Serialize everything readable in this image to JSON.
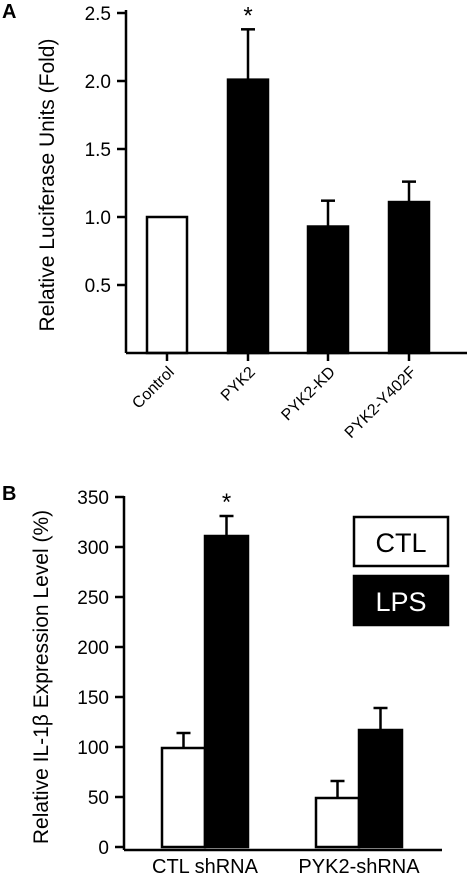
{
  "chart_data": [
    {
      "panel_label": "A",
      "type": "bar",
      "categories": [
        "Control",
        "PYK2",
        "PYK2-KD",
        "PYK2-Y402F"
      ],
      "values": [
        1.0,
        2.01,
        0.93,
        1.11
      ],
      "errors": [
        0,
        0.37,
        0.19,
        0.15
      ],
      "bar_colors": [
        "#ffffff",
        "#000000",
        "#000000",
        "#000000"
      ],
      "significance": [
        "",
        "*",
        "",
        ""
      ],
      "ylabel": "Relative Luciferase Units (Fold)",
      "ylim": [
        0,
        2.5
      ],
      "yticks": [
        0.5,
        1.0,
        1.5,
        2.0,
        2.5
      ],
      "ytick_labels": [
        "0.5",
        "1.0",
        "1.5",
        "2.0",
        "2.5"
      ]
    },
    {
      "panel_label": "B",
      "type": "bar",
      "categories": [
        "CTL shRNA",
        "PYK2-shRNA"
      ],
      "series": [
        {
          "name": "CTL",
          "color": "#ffffff",
          "values": [
            99,
            49
          ],
          "errors": [
            15,
            17
          ],
          "significance": [
            "",
            ""
          ]
        },
        {
          "name": "LPS",
          "color": "#000000",
          "values": [
            311,
            117
          ],
          "errors": [
            20,
            22
          ],
          "significance": [
            "*",
            ""
          ]
        }
      ],
      "ylabel": "Relative IL-1β Expression Level (%)",
      "ylim": [
        0,
        350
      ],
      "yticks": [
        0,
        50,
        100,
        150,
        200,
        250,
        300,
        350
      ],
      "ytick_labels": [
        "0",
        "50",
        "100",
        "150",
        "200",
        "250",
        "300",
        "350"
      ],
      "legend": [
        "CTL",
        "LPS"
      ],
      "legend_position": "top-right"
    }
  ]
}
